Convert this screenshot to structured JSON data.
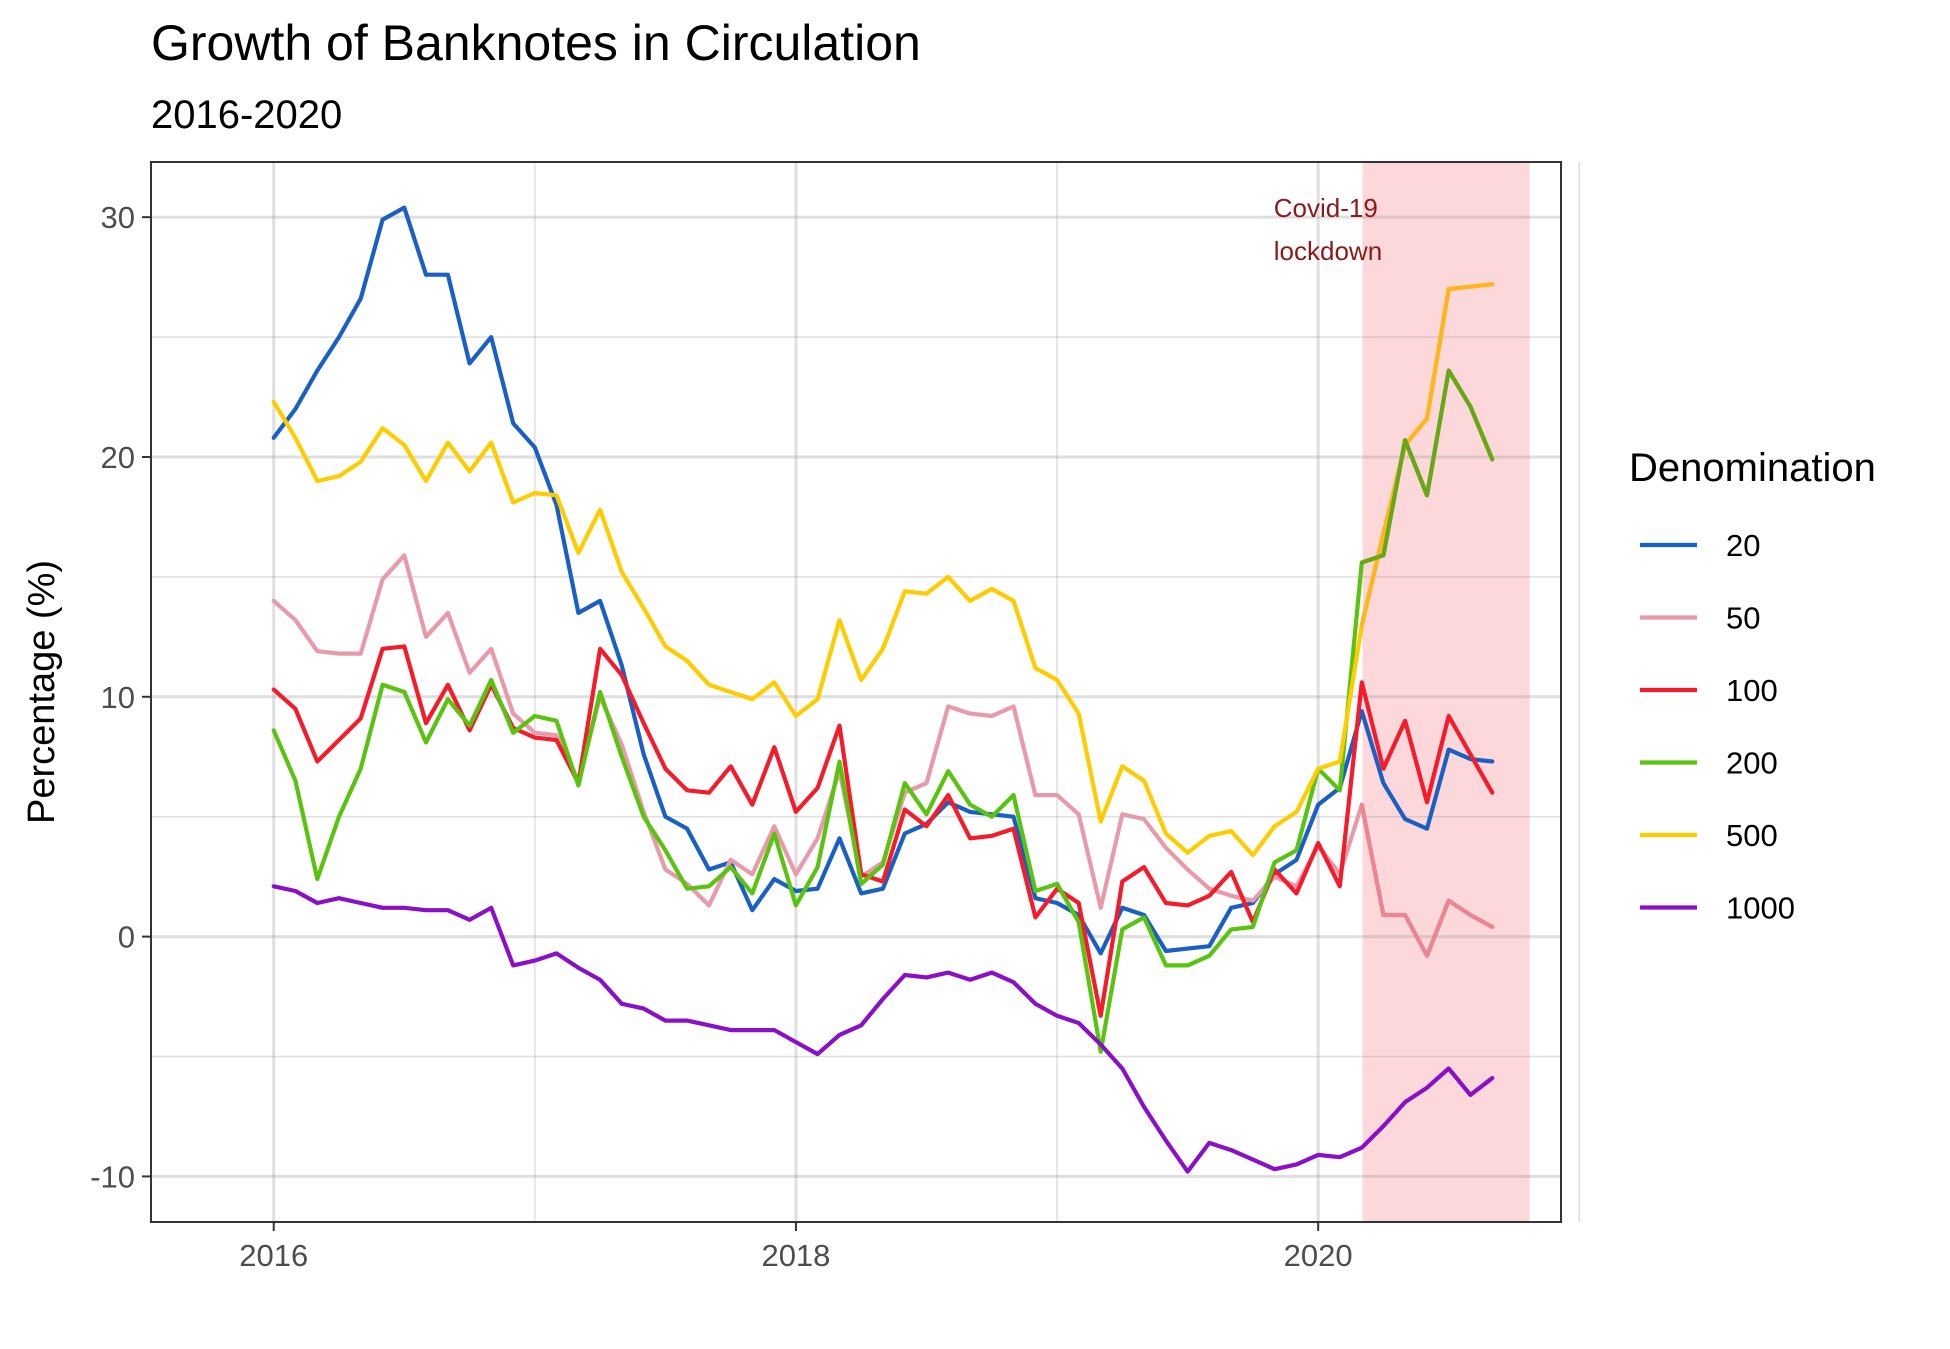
{
  "chart_data": {
    "type": "line",
    "title": "Growth of Banknotes in Circulation",
    "subtitle": "2016-2020",
    "xlabel": "",
    "ylabel": "Percentage (%)",
    "xlim": [
      2015.53,
      2020.93
    ],
    "ylim": [
      -11.9,
      32.3
    ],
    "x_ticks": [
      2016,
      2018,
      2020
    ],
    "x_tick_labels": [
      "2016",
      "2018",
      "2020"
    ],
    "y_ticks": [
      -10,
      0,
      10,
      20,
      30
    ],
    "y_tick_labels": [
      "-10",
      "0",
      "10",
      "20",
      "30"
    ],
    "grid": true,
    "legend": {
      "title": "Denomination",
      "position": "right"
    },
    "highlight": {
      "from": 2020.17,
      "to": 2020.81,
      "color": "#fdd8da",
      "label_lines": [
        "Covid-19",
        "lockdown"
      ],
      "label_x": 2019.83,
      "label_y": 30.0
    },
    "x": [
      2016.0,
      2016.083,
      2016.167,
      2016.25,
      2016.333,
      2016.417,
      2016.5,
      2016.583,
      2016.667,
      2016.75,
      2016.833,
      2016.917,
      2017.0,
      2017.083,
      2017.167,
      2017.25,
      2017.333,
      2017.417,
      2017.5,
      2017.583,
      2017.667,
      2017.75,
      2017.833,
      2017.917,
      2018.0,
      2018.083,
      2018.167,
      2018.25,
      2018.333,
      2018.417,
      2018.5,
      2018.583,
      2018.667,
      2018.75,
      2018.833,
      2018.917,
      2019.0,
      2019.083,
      2019.167,
      2019.25,
      2019.333,
      2019.417,
      2019.5,
      2019.583,
      2019.667,
      2019.75,
      2019.833,
      2019.917,
      2020.0,
      2020.083,
      2020.167,
      2020.25,
      2020.333,
      2020.417,
      2020.5,
      2020.583,
      2020.667
    ],
    "series": [
      {
        "name": "20",
        "color": "#1a5fc4",
        "values": [
          20.8,
          22.0,
          23.6,
          25.0,
          26.6,
          29.9,
          30.4,
          27.6,
          27.6,
          23.9,
          25.0,
          21.4,
          20.4,
          18.0,
          13.5,
          14.0,
          11.3,
          7.6,
          5.0,
          4.5,
          2.8,
          3.1,
          1.1,
          2.4,
          1.9,
          2.0,
          4.1,
          1.8,
          2.0,
          4.3,
          4.7,
          5.6,
          5.2,
          5.1,
          5.0,
          1.6,
          1.4,
          0.9,
          -0.7,
          1.2,
          0.9,
          -0.6,
          -0.5,
          -0.4,
          1.2,
          1.4,
          2.6,
          3.2,
          5.5,
          6.2,
          9.4,
          6.4,
          4.9,
          4.5,
          7.8,
          7.4,
          7.3
        ]
      },
      {
        "name": "50",
        "color": "#e89aaa",
        "values": [
          14.0,
          13.2,
          11.9,
          11.8,
          11.8,
          14.9,
          15.9,
          12.5,
          13.5,
          11.0,
          12.0,
          9.3,
          8.5,
          8.4,
          6.5,
          10.0,
          8.0,
          5.2,
          2.8,
          2.2,
          1.3,
          3.2,
          2.6,
          4.6,
          2.6,
          4.1,
          6.9,
          2.5,
          3.1,
          6.0,
          6.4,
          9.6,
          9.3,
          9.2,
          9.6,
          5.9,
          5.9,
          5.1,
          1.2,
          5.1,
          4.9,
          3.7,
          2.8,
          2.0,
          1.7,
          1.5,
          2.5,
          2.1,
          3.8,
          2.6,
          5.5,
          0.9,
          0.9,
          -0.8,
          1.5,
          0.9,
          0.4
        ]
      },
      {
        "name": "100",
        "color": "#f51b2b",
        "values": [
          10.3,
          9.5,
          7.3,
          8.2,
          9.1,
          12.0,
          12.1,
          8.9,
          10.5,
          8.6,
          10.5,
          8.7,
          8.3,
          8.2,
          6.4,
          12.0,
          10.9,
          8.9,
          7.0,
          6.1,
          6.0,
          7.1,
          5.5,
          7.9,
          5.2,
          6.2,
          8.8,
          2.6,
          2.3,
          5.3,
          4.6,
          5.9,
          4.1,
          4.2,
          4.5,
          0.8,
          2.0,
          1.4,
          -3.3,
          2.3,
          2.9,
          1.4,
          1.3,
          1.7,
          2.7,
          0.6,
          2.8,
          1.8,
          3.9,
          2.1,
          10.6,
          7.0,
          9.0,
          5.6,
          9.2,
          7.6,
          6.0
        ]
      },
      {
        "name": "200",
        "color": "#59c410",
        "values": [
          8.6,
          6.5,
          2.4,
          5.0,
          7.0,
          10.5,
          10.2,
          8.1,
          9.9,
          8.8,
          10.7,
          8.5,
          9.2,
          9.0,
          6.3,
          10.2,
          7.5,
          5.0,
          3.6,
          2.0,
          2.1,
          2.9,
          1.8,
          4.3,
          1.3,
          2.9,
          7.3,
          2.2,
          3.0,
          6.4,
          5.1,
          6.9,
          5.5,
          5.0,
          5.9,
          1.9,
          2.2,
          0.6,
          -4.8,
          0.3,
          0.8,
          -1.2,
          -1.2,
          -0.8,
          0.3,
          0.4,
          3.1,
          3.6,
          7.0,
          6.1,
          15.6,
          15.9,
          20.7,
          18.4,
          23.6,
          22.1,
          19.9
        ]
      },
      {
        "name": "500",
        "color": "#ffcc00",
        "values": [
          22.3,
          20.8,
          19.0,
          19.2,
          19.8,
          21.2,
          20.5,
          19.0,
          20.6,
          19.4,
          20.6,
          18.1,
          18.5,
          18.4,
          16.0,
          17.8,
          15.2,
          13.7,
          12.1,
          11.5,
          10.5,
          10.2,
          9.9,
          10.6,
          9.2,
          9.9,
          13.2,
          10.7,
          12.0,
          14.4,
          14.3,
          15.0,
          14.0,
          14.5,
          14.0,
          11.2,
          10.7,
          9.3,
          4.8,
          7.1,
          6.5,
          4.3,
          3.5,
          4.2,
          4.4,
          3.4,
          4.6,
          5.2,
          7.0,
          7.3,
          13.0,
          16.8,
          20.5,
          21.6,
          27.0,
          27.1,
          27.2
        ]
      },
      {
        "name": "1000",
        "color": "#8a10c8",
        "values": [
          2.1,
          1.9,
          1.4,
          1.6,
          1.4,
          1.2,
          1.2,
          1.1,
          1.1,
          0.7,
          1.2,
          -1.2,
          -1.0,
          -0.7,
          -1.3,
          -1.8,
          -2.8,
          -3.0,
          -3.5,
          -3.5,
          -3.7,
          -3.9,
          -3.9,
          -3.9,
          -4.4,
          -4.9,
          -4.1,
          -3.7,
          -2.6,
          -1.6,
          -1.7,
          -1.5,
          -1.8,
          -1.5,
          -1.9,
          -2.8,
          -3.3,
          -3.6,
          -4.5,
          -5.5,
          -7.1,
          -8.5,
          -9.8,
          -8.6,
          -8.9,
          -9.3,
          -9.7,
          -9.5,
          -9.1,
          -9.2,
          -8.8,
          -7.9,
          -6.9,
          -6.3,
          -5.5,
          -6.6,
          -5.9
        ]
      }
    ],
    "overlay_series": [
      {
        "name": "500",
        "color": "#ffb61e",
        "from_index": 50
      },
      {
        "name": "200",
        "color": "#6aa617",
        "from_index": 50
      },
      {
        "name": "50",
        "color": "#ec8494",
        "from_index": 50
      }
    ]
  }
}
